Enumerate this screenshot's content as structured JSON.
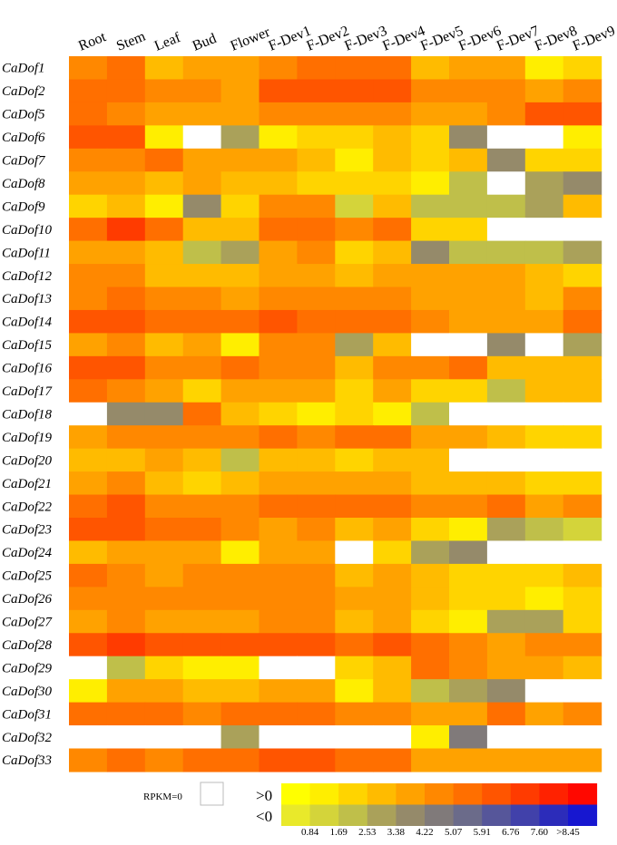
{
  "chart_data": {
    "type": "heatmap",
    "columns": [
      "Root",
      "Stem",
      "Leaf",
      "Bud",
      "Flower",
      "F-Dev1",
      "F-Dev2",
      "F-Dev3",
      "F-Dev4",
      "F-Dev5",
      "F-Dev6",
      "F-Dev7",
      "F-Dev8",
      "F-Dev9"
    ],
    "rows": [
      "CaDof1",
      "CaDof2",
      "CaDof5",
      "CaDof6",
      "CaDof7",
      "CaDof8",
      "CaDof9",
      "CaDof10",
      "CaDof11",
      "CaDof12",
      "CaDof13",
      "CaDof14",
      "CaDof15",
      "CaDof16",
      "CaDof17",
      "CaDof18",
      "CaDof19",
      "CaDof20",
      "CaDof21",
      "CaDof22",
      "CaDof23",
      "CaDof24",
      "CaDof25",
      "CaDof26",
      "CaDof27",
      "CaDof28",
      "CaDof29",
      "CaDof30",
      "CaDof31",
      "CaDof32",
      "CaDof33"
    ],
    "color_scale": {
      "positive_label": ">0",
      "negative_label": "<0",
      "zero_label": "RPKM=0",
      "zero_color": "#ffffff",
      "positive_colors": [
        "#ffff00",
        "#ffee00",
        "#ffd400",
        "#ffbb00",
        "#ffa200",
        "#ff8800",
        "#ff6f00",
        "#ff5500",
        "#ff3b00",
        "#ff2200",
        "#ff0800"
      ],
      "negative_colors": [
        "#e9e92a",
        "#d4d43a",
        "#bfbf4a",
        "#aaa15a",
        "#958a6a",
        "#807a7a",
        "#6b6b8a",
        "#56569a",
        "#4141aa",
        "#2c2cba",
        "#1717d0"
      ],
      "ticks": [
        "0.84",
        "1.69",
        "2.53",
        "3.38",
        "4.22",
        "5.07",
        "5.91",
        "6.76",
        "7.60",
        ">8.45"
      ]
    },
    "values": [
      [
        4.4,
        4.9,
        2.9,
        3.6,
        3.8,
        4.4,
        4.8,
        5.0,
        5.0,
        2.9,
        3.2,
        3.1,
        0.5,
        2.0
      ],
      [
        5.4,
        5.0,
        4.1,
        4.2,
        3.6,
        5.6,
        5.7,
        5.5,
        5.7,
        4.0,
        4.0,
        3.9,
        3.6,
        4.3
      ],
      [
        5.0,
        4.5,
        3.2,
        3.3,
        3.4,
        4.2,
        4.6,
        4.2,
        4.5,
        3.2,
        3.4,
        3.9,
        5.6,
        5.5
      ],
      [
        5.8,
        5.8,
        0.5,
        0,
        -2.9,
        1.2,
        1.3,
        1.6,
        2.9,
        2.1,
        -3.0,
        0,
        0,
        1.2
      ],
      [
        4.5,
        4.4,
        4.7,
        3.4,
        3.3,
        3.2,
        2.8,
        0.8,
        2.5,
        2.0,
        2.4,
        -3.4,
        1.4,
        1.6
      ],
      [
        3.8,
        3.6,
        2.7,
        3.2,
        2.4,
        2.8,
        1.9,
        1.6,
        1.6,
        1.0,
        -1.4,
        0,
        -2.2,
        -3.5
      ],
      [
        2.0,
        2.4,
        0.5,
        -3.6,
        1.7,
        4.2,
        4.5,
        -1.1,
        2.8,
        -1.3,
        -1.3,
        -1.4,
        -2.4,
        2.2
      ],
      [
        5.4,
        6.6,
        5.2,
        2.6,
        2.6,
        5.4,
        5.4,
        4.2,
        5.4,
        2.0,
        1.3,
        0,
        0,
        0
      ],
      [
        3.6,
        3.0,
        2.2,
        -1.8,
        -2.4,
        3.8,
        4.1,
        1.4,
        2.4,
        -3.4,
        -1.3,
        -1.8,
        -2.0,
        -2.9
      ],
      [
        4.1,
        4.0,
        2.3,
        2.8,
        2.8,
        3.6,
        3.5,
        2.9,
        3.4,
        3.4,
        3.4,
        3.1,
        2.4,
        1.8
      ],
      [
        4.4,
        4.8,
        4.0,
        3.9,
        3.7,
        4.4,
        4.3,
        4.0,
        4.0,
        3.8,
        3.5,
        3.6,
        2.9,
        3.9
      ],
      [
        6.1,
        6.3,
        5.4,
        4.8,
        4.8,
        5.6,
        5.3,
        5.3,
        5.4,
        4.0,
        3.6,
        3.3,
        3.5,
        4.7
      ],
      [
        3.6,
        4.2,
        2.6,
        3.4,
        1.0,
        4.1,
        4.4,
        -2.4,
        2.4,
        0,
        0,
        -3.7,
        0,
        -2.3
      ],
      [
        5.7,
        6.1,
        4.6,
        4.6,
        4.9,
        4.5,
        4.5,
        2.7,
        4.1,
        4.4,
        5.1,
        2.8,
        2.6,
        2.3
      ],
      [
        4.7,
        4.0,
        3.3,
        1.9,
        3.2,
        3.0,
        3.0,
        1.9,
        3.0,
        1.7,
        2.0,
        -2.0,
        2.4,
        2.4
      ],
      [
        0,
        -3.0,
        -3.0,
        5.1,
        2.7,
        1.5,
        1.2,
        1.6,
        1.0,
        -1.3,
        0,
        0,
        0,
        0
      ],
      [
        3.3,
        4.6,
        4.0,
        3.9,
        4.0,
        4.9,
        4.6,
        5.1,
        5.0,
        3.2,
        3.3,
        2.7,
        2.0,
        1.4
      ],
      [
        2.5,
        2.8,
        3.5,
        2.3,
        -1.7,
        2.6,
        2.4,
        1.5,
        2.7,
        2.8,
        0,
        0,
        0,
        0
      ],
      [
        3.6,
        3.9,
        2.5,
        1.7,
        2.6,
        3.6,
        3.4,
        3.6,
        3.5,
        2.6,
        2.6,
        2.2,
        1.8,
        1.7
      ],
      [
        5.4,
        5.6,
        4.3,
        4.5,
        4.6,
        4.8,
        5.0,
        5.3,
        5.0,
        4.4,
        4.4,
        4.8,
        3.2,
        3.9
      ],
      [
        5.6,
        5.7,
        5.2,
        4.8,
        4.4,
        3.7,
        4.4,
        2.6,
        3.0,
        1.8,
        0.8,
        -2.2,
        -1.4,
        -1.1
      ],
      [
        2.9,
        3.0,
        3.4,
        3.2,
        0.5,
        3.2,
        3.3,
        0,
        2.1,
        -2.2,
        -3.8,
        0,
        0,
        0
      ],
      [
        5.1,
        4.4,
        3.7,
        4.0,
        4.1,
        4.3,
        4.5,
        2.6,
        3.2,
        2.6,
        2.1,
        1.9,
        1.4,
        2.2
      ],
      [
        4.1,
        4.4,
        4.4,
        4.6,
        4.6,
        4.6,
        4.6,
        3.2,
        3.4,
        2.3,
        2.0,
        1.4,
        0.9,
        2.0
      ],
      [
        3.2,
        3.9,
        3.3,
        3.0,
        3.7,
        4.0,
        4.3,
        2.4,
        3.2,
        1.3,
        1.2,
        -2.2,
        -2.6,
        1.8
      ],
      [
        6.2,
        6.7,
        5.8,
        5.8,
        5.8,
        5.8,
        5.7,
        5.3,
        5.7,
        4.8,
        4.6,
        3.8,
        4.0,
        3.9
      ],
      [
        0,
        -1.3,
        1.6,
        0.5,
        1.2,
        0,
        0,
        1.7,
        2.6,
        4.7,
        4.6,
        3.8,
        3.4,
        2.5
      ],
      [
        0.6,
        3.3,
        3.6,
        2.7,
        2.9,
        3.4,
        3.4,
        1.0,
        2.6,
        -1.3,
        -2.9,
        -3.0,
        0,
        0
      ],
      [
        4.7,
        5.2,
        4.8,
        3.9,
        4.8,
        5.0,
        5.1,
        4.6,
        4.6,
        3.2,
        3.5,
        4.7,
        3.8,
        4.1
      ],
      [
        0,
        0,
        0,
        0,
        -2.2,
        0,
        0,
        0,
        0,
        0.6,
        -4.0,
        0,
        0,
        0
      ],
      [
        4.4,
        5.0,
        4.4,
        5.4,
        5.4,
        5.8,
        5.7,
        5.3,
        5.0,
        3.7,
        3.5,
        3.3,
        3.0,
        3.0
      ]
    ]
  }
}
